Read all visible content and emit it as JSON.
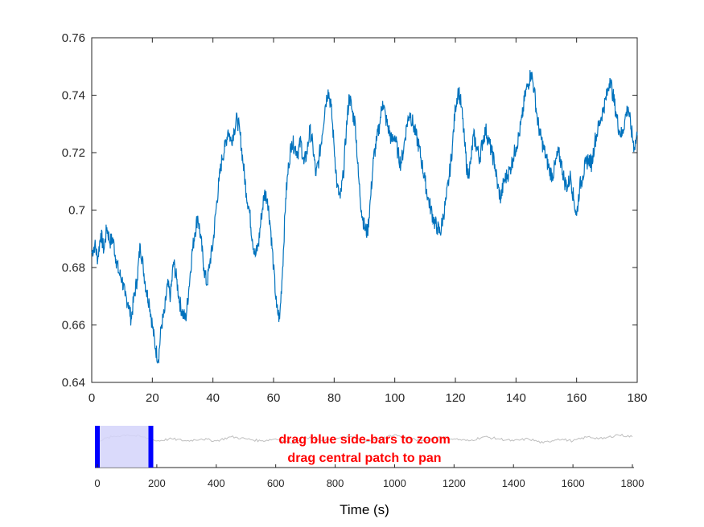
{
  "chart_data": [
    {
      "type": "line",
      "xlim": [
        0,
        180
      ],
      "ylim": [
        0.64,
        0.76
      ],
      "x_ticks": [
        "0",
        "20",
        "40",
        "60",
        "80",
        "100",
        "120",
        "140",
        "160",
        "180"
      ],
      "y_ticks": [
        "0.64",
        "0.66",
        "0.68",
        "0.7",
        "0.72",
        "0.74",
        "0.76"
      ],
      "grid": false,
      "color": "#0072BD",
      "series": [
        {
          "x": [
            0,
            1,
            2,
            3,
            4,
            5,
            6,
            7,
            8,
            9,
            10,
            11,
            12,
            13,
            14,
            15,
            16,
            17,
            18,
            19,
            20,
            21,
            22,
            23,
            24,
            25,
            26,
            27,
            28,
            29,
            30,
            31,
            32,
            33,
            34,
            35,
            36,
            37,
            38,
            39,
            40,
            41,
            42,
            43,
            44,
            45,
            46,
            47,
            48,
            49,
            50,
            51,
            52,
            53,
            54,
            55,
            56,
            57,
            58,
            59,
            60,
            61,
            62,
            63,
            64,
            65,
            66,
            67,
            68,
            69,
            70,
            71,
            72,
            73,
            74,
            75,
            76,
            77,
            78,
            79,
            80,
            81,
            82,
            83,
            84,
            85,
            86,
            87,
            88,
            89,
            90,
            91,
            92,
            93,
            94,
            95,
            96,
            97,
            98,
            99,
            100,
            101,
            102,
            103,
            104,
            105,
            106,
            107,
            108,
            109,
            110,
            111,
            112,
            113,
            114,
            115,
            116,
            117,
            118,
            119,
            120,
            121,
            122,
            123,
            124,
            125,
            126,
            127,
            128,
            129,
            130,
            131,
            132,
            133,
            134,
            135,
            136,
            137,
            138,
            139,
            140,
            141,
            142,
            143,
            144,
            145,
            146,
            147,
            148,
            149,
            150,
            151,
            152,
            153,
            154,
            155,
            156,
            157,
            158,
            159,
            160,
            161,
            162,
            163,
            164,
            165,
            166,
            167,
            168,
            169,
            170,
            171,
            172,
            173,
            174,
            175,
            176,
            177,
            178,
            179,
            180
          ],
          "y": [
            0.685,
            0.688,
            0.683,
            0.692,
            0.686,
            0.694,
            0.689,
            0.69,
            0.683,
            0.678,
            0.676,
            0.67,
            0.668,
            0.662,
            0.67,
            0.676,
            0.688,
            0.68,
            0.672,
            0.668,
            0.66,
            0.652,
            0.648,
            0.66,
            0.664,
            0.674,
            0.67,
            0.682,
            0.676,
            0.668,
            0.664,
            0.662,
            0.672,
            0.684,
            0.692,
            0.698,
            0.69,
            0.68,
            0.674,
            0.682,
            0.688,
            0.7,
            0.71,
            0.718,
            0.722,
            0.728,
            0.724,
            0.728,
            0.732,
            0.726,
            0.716,
            0.706,
            0.7,
            0.69,
            0.684,
            0.688,
            0.698,
            0.706,
            0.704,
            0.694,
            0.68,
            0.666,
            0.662,
            0.68,
            0.704,
            0.716,
            0.724,
            0.722,
            0.72,
            0.724,
            0.716,
            0.72,
            0.728,
            0.722,
            0.712,
            0.718,
            0.726,
            0.736,
            0.742,
            0.736,
            0.722,
            0.708,
            0.704,
            0.712,
            0.728,
            0.74,
            0.734,
            0.73,
            0.712,
            0.7,
            0.694,
            0.692,
            0.704,
            0.718,
            0.724,
            0.73,
            0.738,
            0.732,
            0.728,
            0.724,
            0.726,
            0.72,
            0.716,
            0.722,
            0.73,
            0.734,
            0.73,
            0.726,
            0.722,
            0.716,
            0.71,
            0.704,
            0.7,
            0.696,
            0.694,
            0.692,
            0.698,
            0.704,
            0.712,
            0.722,
            0.736,
            0.742,
            0.736,
            0.724,
            0.712,
            0.716,
            0.726,
            0.722,
            0.718,
            0.724,
            0.728,
            0.724,
            0.72,
            0.716,
            0.708,
            0.704,
            0.71,
            0.712,
            0.714,
            0.718,
            0.722,
            0.726,
            0.732,
            0.74,
            0.744,
            0.748,
            0.742,
            0.732,
            0.726,
            0.722,
            0.718,
            0.714,
            0.712,
            0.716,
            0.72,
            0.716,
            0.71,
            0.708,
            0.712,
            0.704,
            0.698,
            0.708,
            0.712,
            0.716,
            0.718,
            0.716,
            0.724,
            0.728,
            0.732,
            0.736,
            0.74,
            0.746,
            0.74,
            0.734,
            0.728,
            0.726,
            0.732,
            0.736,
            0.728,
            0.722,
            0.726
          ]
        }
      ]
    },
    {
      "type": "line",
      "xlim": [
        0,
        1800
      ],
      "x_ticks": [
        "0",
        "200",
        "400",
        "600",
        "800",
        "1000",
        "1200",
        "1400",
        "1600",
        "1800"
      ],
      "xlabel": "Time (s)",
      "color": "#bfbfbf",
      "selection": {
        "start": 0,
        "end": 180
      },
      "annotation_lines": [
        "drag blue side-bars to zoom",
        "drag central patch to pan"
      ],
      "annotation_color": "#ff0000",
      "series": [
        {
          "x": [
            0,
            50,
            100,
            150,
            200,
            250,
            300,
            350,
            400,
            450,
            500,
            550,
            600,
            650,
            700,
            750,
            800,
            850,
            900,
            950,
            1000,
            1050,
            1100,
            1150,
            1200,
            1250,
            1300,
            1350,
            1400,
            1450,
            1500,
            1550,
            1600,
            1650,
            1700,
            1750,
            1800
          ],
          "y": [
            0.7,
            0.72,
            0.73,
            0.72,
            0.7,
            0.71,
            0.7,
            0.71,
            0.7,
            0.72,
            0.71,
            0.7,
            0.71,
            0.69,
            0.72,
            0.7,
            0.71,
            0.72,
            0.7,
            0.71,
            0.73,
            0.71,
            0.7,
            0.72,
            0.71,
            0.7,
            0.72,
            0.71,
            0.7,
            0.71,
            0.69,
            0.71,
            0.7,
            0.72,
            0.71,
            0.73,
            0.72
          ]
        }
      ]
    }
  ]
}
